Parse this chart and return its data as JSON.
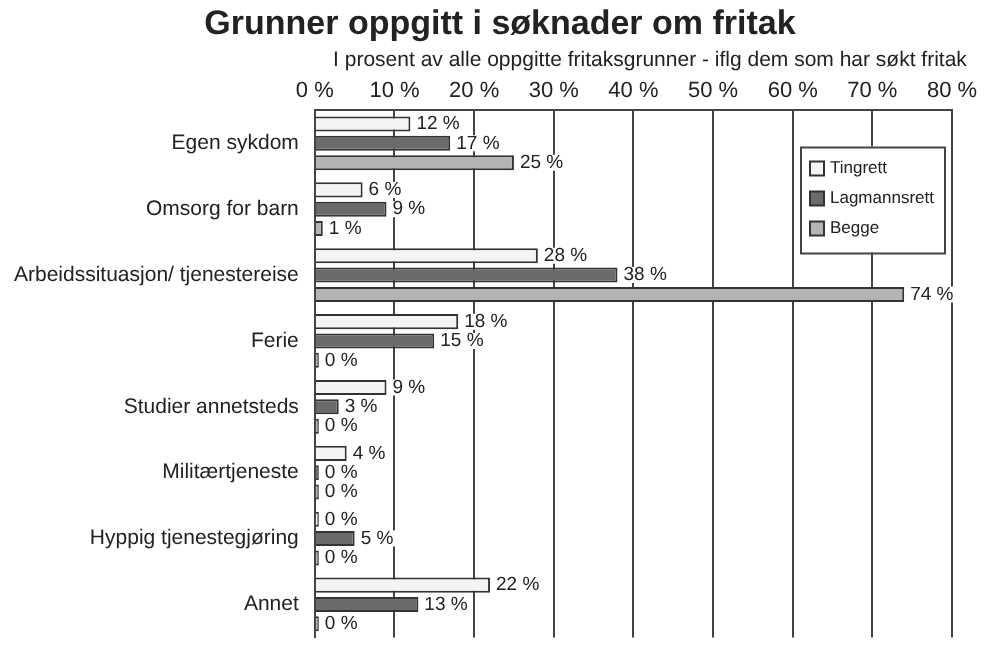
{
  "chart_data": {
    "type": "bar",
    "orientation": "horizontal",
    "title": "Grunner oppgitt i søknader om fritak",
    "subtitle": "I prosent av alle oppgitte fritaksgrunner - iflg dem som har søkt fritak",
    "categories": [
      "Egen sykdom",
      "Omsorg for barn",
      "Arbeidssituasjon/ tjenestereise",
      "Ferie",
      "Studier annetsteds",
      "Militærtjeneste",
      "Hyppig tjenestegjøring",
      "Annet"
    ],
    "series": [
      {
        "name": "Tingrett",
        "color": "#f4f4f4",
        "values": [
          12,
          6,
          28,
          18,
          9,
          4,
          0,
          22
        ],
        "value_labels": [
          "12 %",
          "6 %",
          "28 %",
          "18 %",
          "9 %",
          "4 %",
          "0 %",
          "22 %"
        ]
      },
      {
        "name": "Lagmannsrett",
        "color": "#6b6b6b",
        "values": [
          17,
          9,
          38,
          15,
          3,
          0,
          5,
          13
        ],
        "value_labels": [
          "17 %",
          "9 %",
          "38 %",
          "15 %",
          "3 %",
          "0 %",
          "5 %",
          "13 %"
        ]
      },
      {
        "name": "Begge",
        "color": "#b4b4b4",
        "values": [
          25,
          1,
          74,
          0,
          0,
          0,
          0,
          0
        ],
        "value_labels": [
          "25 %",
          "1 %",
          "74 %",
          "0 %",
          "0 %",
          "0 %",
          "0 %",
          "0 %"
        ]
      }
    ],
    "xlim": [
      0,
      80
    ],
    "xticks": [
      {
        "value": 0,
        "label": "0 %"
      },
      {
        "value": 10,
        "label": "10 %"
      },
      {
        "value": 20,
        "label": "20 %"
      },
      {
        "value": 30,
        "label": "30 %"
      },
      {
        "value": 40,
        "label": "40 %"
      },
      {
        "value": 50,
        "label": "50 %"
      },
      {
        "value": 60,
        "label": "60 %"
      },
      {
        "value": 70,
        "label": "70 %"
      },
      {
        "value": 80,
        "label": "80 %"
      }
    ],
    "grid": "x",
    "legend": "right"
  }
}
